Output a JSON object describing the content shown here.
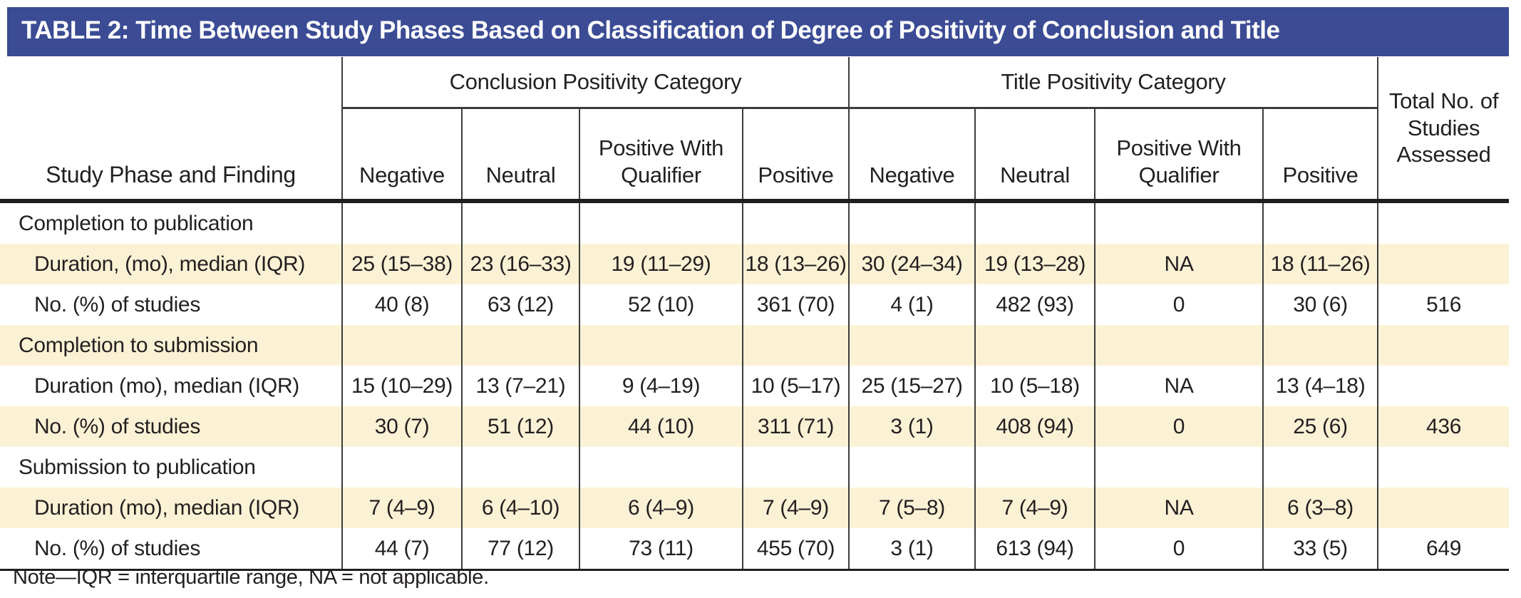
{
  "title_bar": {
    "text": "TABLE 2: Time Between Study Phases Based on Classification of Degree of Positivity of Conclusion and Title",
    "bg_color": "#3b4b94",
    "text_color": "#ffffff"
  },
  "table": {
    "corner_header": "Study Phase and Finding",
    "groups": [
      {
        "label": "Conclusion Positivity Category"
      },
      {
        "label": "Title Positivity Category"
      }
    ],
    "sub_headers": [
      "Negative",
      "Neutral",
      "Positive With Qualifier",
      "Positive",
      "Negative",
      "Neutral",
      "Positive With Qualifier",
      "Positive"
    ],
    "total_header": "Total No. of Studies Assessed",
    "stripe_color": "#fbf2d5",
    "rows": [
      {
        "label": "Completion to publication",
        "type": "section",
        "cells": [
          "",
          "",
          "",
          "",
          "",
          "",
          "",
          "",
          ""
        ]
      },
      {
        "label": "Duration, (mo), median (IQR)",
        "type": "sub",
        "cells": [
          "25 (15–38)",
          "23 (16–33)",
          "19 (11–29)",
          "18 (13–26)",
          "30 (24–34)",
          "19 (13–28)",
          "NA",
          "18 (11–26)",
          ""
        ]
      },
      {
        "label": "No. (%) of studies",
        "type": "sub",
        "cells": [
          "40 (8)",
          "63 (12)",
          "52 (10)",
          "361 (70)",
          "4 (1)",
          "482 (93)",
          "0",
          "30 (6)",
          "516"
        ]
      },
      {
        "label": "Completion to submission",
        "type": "section",
        "cells": [
          "",
          "",
          "",
          "",
          "",
          "",
          "",
          "",
          ""
        ]
      },
      {
        "label": "Duration (mo), median (IQR)",
        "type": "sub",
        "cells": [
          "15 (10–29)",
          "13 (7–21)",
          "9 (4–19)",
          "10 (5–17)",
          "25 (15–27)",
          "10 (5–18)",
          "NA",
          "13 (4–18)",
          ""
        ]
      },
      {
        "label": "No. (%) of studies",
        "type": "sub",
        "cells": [
          "30 (7)",
          "51 (12)",
          "44 (10)",
          "311 (71)",
          "3 (1)",
          "408 (94)",
          "0",
          "25 (6)",
          "436"
        ]
      },
      {
        "label": "Submission to publication",
        "type": "section",
        "cells": [
          "",
          "",
          "",
          "",
          "",
          "",
          "",
          "",
          ""
        ]
      },
      {
        "label": "Duration (mo), median (IQR)",
        "type": "sub",
        "cells": [
          "7 (4–9)",
          "6 (4–10)",
          "6 (4–9)",
          "7 (4–9)",
          "7 (5–8)",
          "7 (4–9)",
          "NA",
          "6 (3–8)",
          ""
        ]
      },
      {
        "label": "No. (%) of studies",
        "type": "sub",
        "cells": [
          "44 (7)",
          "77 (12)",
          "73 (11)",
          "455 (70)",
          "3 (1)",
          "613 (94)",
          "0",
          "33 (5)",
          "649"
        ]
      }
    ]
  },
  "note": "Note—IQR = interquartile range, NA = not applicable."
}
